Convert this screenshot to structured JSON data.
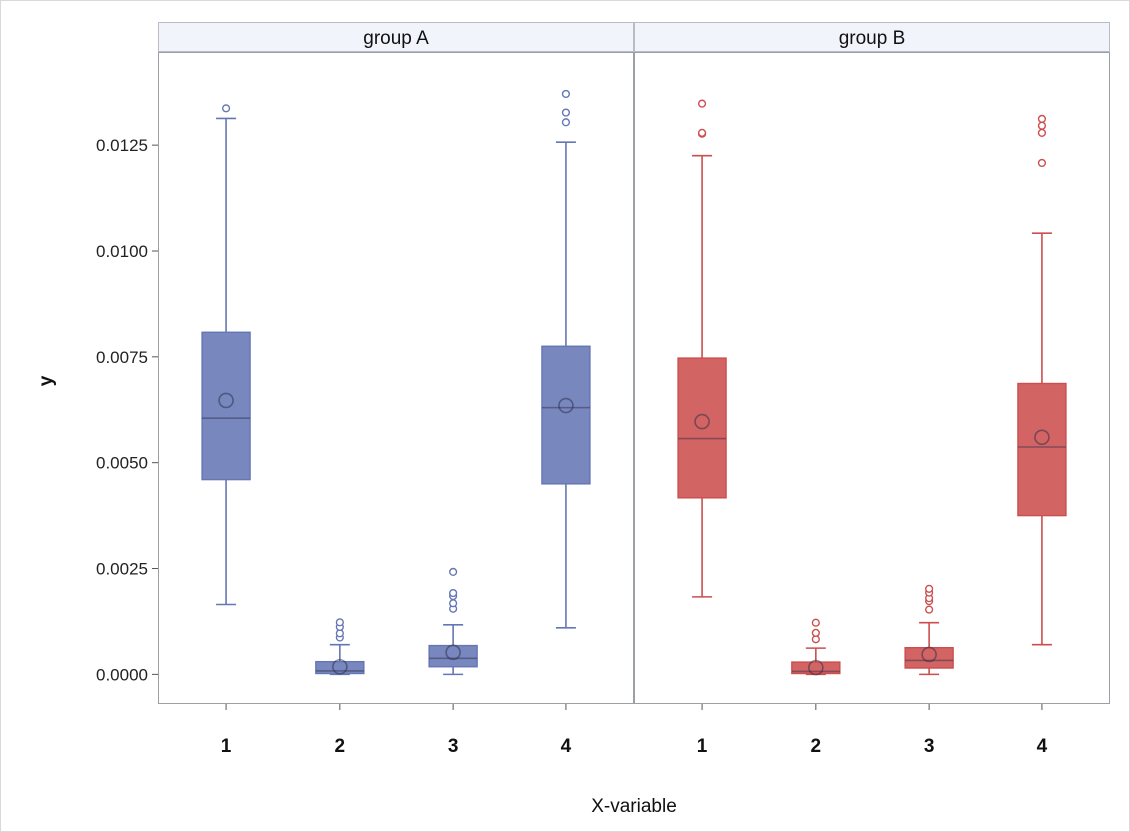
{
  "chart_data": {
    "type": "boxplot",
    "xlabel": "X-variable",
    "ylabel": "y",
    "ylim": [
      -0.0007,
      0.0147
    ],
    "yticks": [
      0.0,
      0.0025,
      0.005,
      0.0075,
      0.01,
      0.0125
    ],
    "ytick_labels": [
      "0.0000",
      "0.0025",
      "0.0050",
      "0.0075",
      "0.0100",
      "0.0125"
    ],
    "categories": [
      "1",
      "2",
      "3",
      "4"
    ],
    "panels": [
      {
        "name": "group A",
        "color": "#6576b4",
        "boxes": [
          {
            "category": "1",
            "min": 0.00165,
            "q1": 0.0046,
            "median": 0.00605,
            "q3": 0.00808,
            "max": 0.01313,
            "mean": 0.00647,
            "outliers": [
              0.01337
            ]
          },
          {
            "category": "2",
            "min": 0.0,
            "q1": 2e-05,
            "median": 8e-05,
            "q3": 0.0003,
            "max": 0.0007,
            "mean": 0.00018,
            "outliers": [
              0.00087,
              0.00097,
              0.00112,
              0.00123
            ]
          },
          {
            "category": "3",
            "min": 0.0,
            "q1": 0.00018,
            "median": 0.00038,
            "q3": 0.00068,
            "max": 0.00117,
            "mean": 0.00052,
            "outliers": [
              0.00155,
              0.00168,
              0.00185,
              0.00192,
              0.00242
            ]
          },
          {
            "category": "4",
            "min": 0.0011,
            "q1": 0.0045,
            "median": 0.0063,
            "q3": 0.00775,
            "max": 0.01257,
            "mean": 0.00635,
            "outliers": [
              0.01304,
              0.01327,
              0.01371
            ]
          }
        ]
      },
      {
        "name": "group B",
        "color": "#cc4e4e",
        "boxes": [
          {
            "category": "1",
            "min": 0.00183,
            "q1": 0.00417,
            "median": 0.00557,
            "q3": 0.00747,
            "max": 0.01225,
            "mean": 0.00597,
            "outliers": [
              0.01277,
              0.01279,
              0.01348
            ]
          },
          {
            "category": "2",
            "min": 0.0,
            "q1": 2e-05,
            "median": 7e-05,
            "q3": 0.00029,
            "max": 0.00062,
            "mean": 0.00016,
            "outliers": [
              0.00083,
              0.00098,
              0.00122
            ]
          },
          {
            "category": "3",
            "min": 0.0,
            "q1": 0.00015,
            "median": 0.00033,
            "q3": 0.00063,
            "max": 0.00122,
            "mean": 0.00047,
            "outliers": [
              0.00153,
              0.00173,
              0.0018,
              0.00193,
              0.00202
            ]
          },
          {
            "category": "4",
            "min": 0.0007,
            "q1": 0.00375,
            "median": 0.00537,
            "q3": 0.00687,
            "max": 0.01042,
            "mean": 0.0056,
            "outliers": [
              0.01208,
              0.01279,
              0.01296,
              0.01312
            ]
          }
        ]
      }
    ]
  }
}
